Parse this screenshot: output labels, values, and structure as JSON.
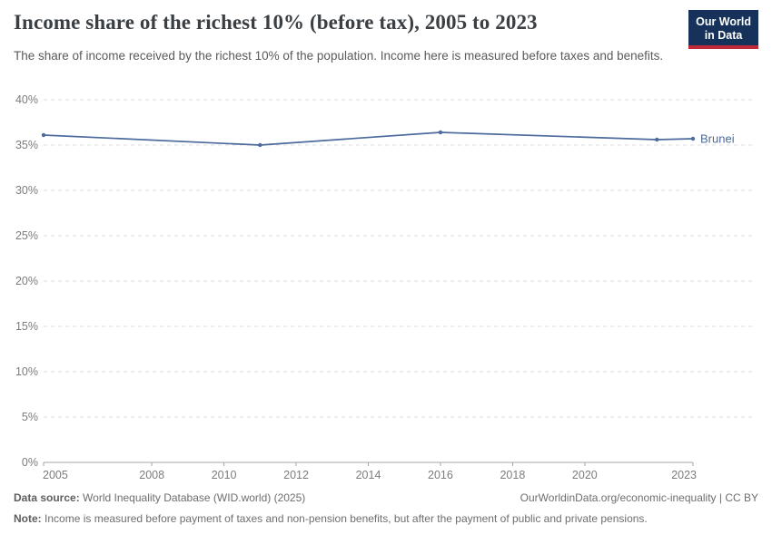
{
  "header": {
    "title": "Income share of the richest 10% (before tax), 2005 to 2023",
    "subtitle": "The share of income received by the richest 10% of the population. Income here is measured before taxes and benefits.",
    "logo": {
      "line1": "Our World",
      "line2": "in Data"
    }
  },
  "chart_data": {
    "type": "line",
    "title": "Income share of the richest 10% (before tax), 2005 to 2023",
    "xlabel": "",
    "ylabel": "",
    "xlim": [
      2005,
      2023
    ],
    "ylim": [
      0,
      40
    ],
    "xticks": [
      2005,
      2008,
      2010,
      2012,
      2014,
      2016,
      2018,
      2020,
      2023
    ],
    "yticks": [
      0,
      5,
      10,
      15,
      20,
      25,
      30,
      35,
      40
    ],
    "ytick_suffix": "%",
    "grid": "horizontal-dashed",
    "legend_position": "end-of-line",
    "series": [
      {
        "name": "Brunei",
        "color": "#4c6a9c",
        "x": [
          2005,
          2011,
          2016,
          2022,
          2023
        ],
        "values": [
          36.1,
          35.0,
          36.4,
          35.6,
          35.7
        ]
      }
    ]
  },
  "footer": {
    "datasource_label": "Data source:",
    "datasource_text": "World Inequality Database (WID.world) (2025)",
    "attribution": "OurWorldinData.org/economic-inequality | CC BY",
    "note_label": "Note:",
    "note_text": "Income is measured before payment of taxes and non-pension benefits, but after the payment of public and private pensions."
  },
  "colors": {
    "line": "#4c6a9c",
    "grid": "#dcdcdc",
    "axis": "#a5a5a5",
    "tick_text": "#7d7d7d",
    "logo_bg": "#16325a",
    "logo_stripe": "#be2a39"
  }
}
